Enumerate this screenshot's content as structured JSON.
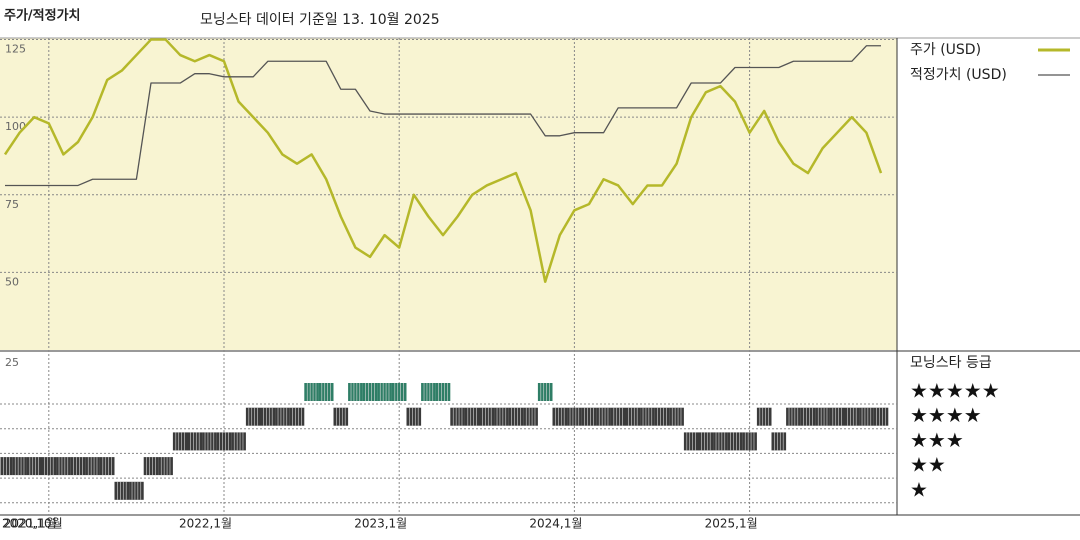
{
  "chart_data": {
    "type": "line",
    "title": "주가/적정가치",
    "subtitle": "모닝스타 데이터 기준일 13. 10월 2025",
    "categories": [
      "2020,10월",
      null,
      null,
      "2021,1월",
      null,
      null,
      null,
      null,
      null,
      null,
      null,
      null,
      null,
      null,
      null,
      "2022,1월",
      null,
      null,
      null,
      null,
      null,
      null,
      null,
      null,
      null,
      null,
      null,
      "2023,1월",
      null,
      null,
      null,
      null,
      null,
      null,
      null,
      null,
      null,
      null,
      null,
      "2024,1월",
      null,
      null,
      null,
      null,
      null,
      null,
      null,
      null,
      null,
      null,
      null,
      "2025,1월",
      null,
      null,
      null,
      null,
      null,
      null,
      null,
      null,
      null
    ],
    "series": [
      {
        "name": "주가 (USD)",
        "color": "#b5b82a",
        "values": [
          88,
          95,
          100,
          98,
          88,
          92,
          100,
          112,
          115,
          120,
          125,
          125,
          120,
          118,
          120,
          118,
          105,
          100,
          95,
          88,
          85,
          88,
          80,
          68,
          58,
          55,
          62,
          58,
          75,
          68,
          62,
          68,
          75,
          78,
          80,
          82,
          70,
          47,
          62,
          70,
          72,
          80,
          78,
          72,
          78,
          78,
          85,
          100,
          108,
          110,
          105,
          95,
          102,
          92,
          85,
          82,
          90,
          95,
          100,
          95,
          82
        ]
      },
      {
        "name": "적정가치 (USD)",
        "color": "#555555",
        "values": [
          78,
          78,
          78,
          78,
          78,
          78,
          80,
          80,
          80,
          80,
          111,
          111,
          111,
          114,
          114,
          113,
          113,
          113,
          118,
          118,
          118,
          118,
          118,
          109,
          109,
          102,
          101,
          101,
          101,
          101,
          101,
          101,
          101,
          101,
          101,
          101,
          101,
          94,
          94,
          95,
          95,
          95,
          103,
          103,
          103,
          103,
          103,
          111,
          111,
          111,
          116,
          116,
          116,
          116,
          118,
          118,
          118,
          118,
          118,
          123,
          123
        ]
      }
    ],
    "ylim": [
      25,
      125.5
    ],
    "yticks": [
      50,
      75,
      100,
      125
    ],
    "grid": true,
    "ratings": {
      "title": "모닝스타 등급",
      "axis_label": "25",
      "levels": [
        5,
        4,
        3,
        2,
        1
      ],
      "level_labels": [
        "★★★★★",
        "★★★★",
        "★★★",
        "★★",
        "★"
      ],
      "colors": {
        "high": "#2f7e66",
        "other": "#3a3a3a"
      },
      "values": [
        2,
        2,
        2,
        2,
        2,
        2,
        2,
        2,
        1,
        1,
        2,
        2,
        3,
        3,
        3,
        3,
        3,
        4,
        4,
        4,
        4,
        5,
        5,
        4,
        5,
        5,
        5,
        5,
        4,
        5,
        5,
        4,
        4,
        4,
        4,
        4,
        4,
        5,
        4,
        4,
        4,
        4,
        4,
        4,
        4,
        4,
        4,
        3,
        3,
        3,
        3,
        3,
        4,
        3,
        4,
        4,
        4,
        4,
        4,
        4,
        4
      ]
    }
  }
}
